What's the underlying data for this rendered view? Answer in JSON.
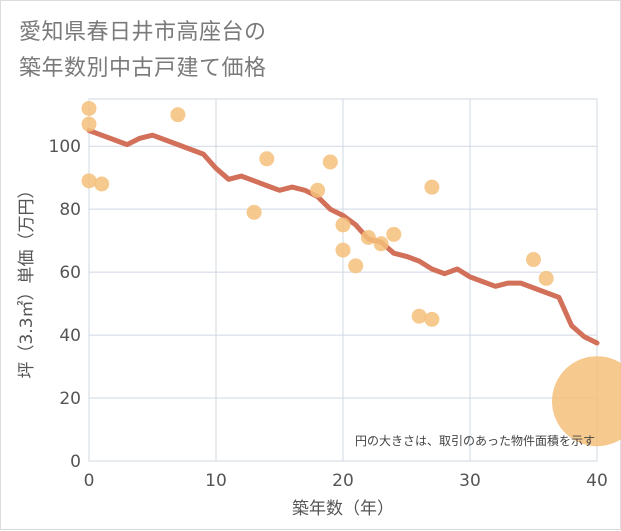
{
  "title_lines": [
    "愛知県春日井市高座台の",
    "築年数別中古戸建て価格"
  ],
  "chart_data": {
    "type": "scatter",
    "title": "愛知県春日井市高座台の築年数別中古戸建て価格",
    "xlabel": "築年数（年）",
    "ylabel": "坪（3.3㎡）単価（万円）",
    "xlim": [
      0,
      40
    ],
    "ylim": [
      0,
      115
    ],
    "xticks": [
      0,
      10,
      20,
      30,
      40
    ],
    "yticks": [
      0,
      20,
      40,
      60,
      80,
      100
    ],
    "annotation": "円の大きさは、取引のあった物件面積を示す",
    "colors": {
      "points": "#f5c07a",
      "line": "#d2705a",
      "grid": "#cfd8e3"
    },
    "points": [
      {
        "x": 0,
        "y": 112,
        "size": 1
      },
      {
        "x": 0,
        "y": 107,
        "size": 1
      },
      {
        "x": 0,
        "y": 89,
        "size": 1
      },
      {
        "x": 1,
        "y": 88,
        "size": 1
      },
      {
        "x": 7,
        "y": 110,
        "size": 1
      },
      {
        "x": 13,
        "y": 79,
        "size": 1
      },
      {
        "x": 14,
        "y": 96,
        "size": 1
      },
      {
        "x": 18,
        "y": 86,
        "size": 1
      },
      {
        "x": 19,
        "y": 95,
        "size": 1
      },
      {
        "x": 20,
        "y": 75,
        "size": 1
      },
      {
        "x": 20,
        "y": 67,
        "size": 1
      },
      {
        "x": 21,
        "y": 62,
        "size": 1
      },
      {
        "x": 22,
        "y": 71,
        "size": 1
      },
      {
        "x": 23,
        "y": 69,
        "size": 1
      },
      {
        "x": 24,
        "y": 72,
        "size": 1
      },
      {
        "x": 26,
        "y": 46,
        "size": 1
      },
      {
        "x": 27,
        "y": 87,
        "size": 1
      },
      {
        "x": 27,
        "y": 45,
        "size": 1
      },
      {
        "x": 35,
        "y": 64,
        "size": 1
      },
      {
        "x": 36,
        "y": 58,
        "size": 1
      },
      {
        "x": 40,
        "y": 19,
        "size": 6
      }
    ],
    "trend": [
      {
        "x": 0,
        "y": 105
      },
      {
        "x": 1,
        "y": 103.5
      },
      {
        "x": 2,
        "y": 102
      },
      {
        "x": 3,
        "y": 100.5
      },
      {
        "x": 4,
        "y": 102.5
      },
      {
        "x": 5,
        "y": 103.5
      },
      {
        "x": 6,
        "y": 102
      },
      {
        "x": 7,
        "y": 100.5
      },
      {
        "x": 8,
        "y": 99
      },
      {
        "x": 9,
        "y": 97.5
      },
      {
        "x": 10,
        "y": 93
      },
      {
        "x": 11,
        "y": 89.5
      },
      {
        "x": 12,
        "y": 90.5
      },
      {
        "x": 13,
        "y": 89
      },
      {
        "x": 14,
        "y": 87.5
      },
      {
        "x": 15,
        "y": 86
      },
      {
        "x": 16,
        "y": 87
      },
      {
        "x": 17,
        "y": 86
      },
      {
        "x": 18,
        "y": 84
      },
      {
        "x": 19,
        "y": 80
      },
      {
        "x": 20,
        "y": 78
      },
      {
        "x": 21,
        "y": 75
      },
      {
        "x": 22,
        "y": 70.5
      },
      {
        "x": 23,
        "y": 69.5
      },
      {
        "x": 24,
        "y": 66
      },
      {
        "x": 25,
        "y": 65
      },
      {
        "x": 26,
        "y": 63.5
      },
      {
        "x": 27,
        "y": 61
      },
      {
        "x": 28,
        "y": 59.5
      },
      {
        "x": 29,
        "y": 61
      },
      {
        "x": 30,
        "y": 58.5
      },
      {
        "x": 31,
        "y": 57
      },
      {
        "x": 32,
        "y": 55.5
      },
      {
        "x": 33,
        "y": 56.5
      },
      {
        "x": 34,
        "y": 56.5
      },
      {
        "x": 35,
        "y": 55
      },
      {
        "x": 36,
        "y": 53.5
      },
      {
        "x": 37,
        "y": 52
      },
      {
        "x": 38,
        "y": 43
      },
      {
        "x": 39,
        "y": 39.5
      },
      {
        "x": 40,
        "y": 37.5
      }
    ]
  }
}
